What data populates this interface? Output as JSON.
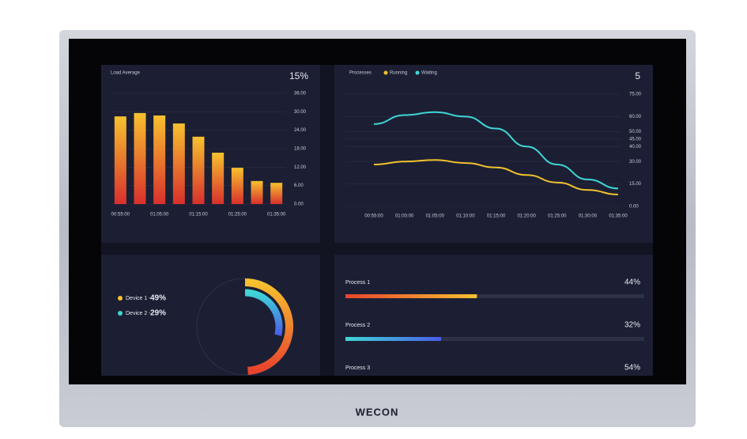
{
  "brand": "WECON",
  "chart_data": [
    {
      "type": "bar",
      "title": "Load Average",
      "stat": "15%",
      "categories": [
        "00:55:00",
        null,
        "01:05:00",
        null,
        "01:15:00",
        null,
        "01:25:00",
        null,
        "01:35:00"
      ],
      "values": [
        28.5,
        29.6,
        28.8,
        26.2,
        21.9,
        16.7,
        11.8,
        7.5,
        6.9
      ],
      "colors": [
        "#f7c12f",
        "#d8302c"
      ],
      "ylim": [
        0,
        36
      ],
      "yticks": [
        {
          "value": 0,
          "label": "0.00"
        },
        {
          "value": 6,
          "label": "6.00"
        },
        {
          "value": 12,
          "label": "12.00"
        },
        {
          "value": 18,
          "label": "18.00"
        },
        {
          "value": 24,
          "label": "24.00"
        },
        {
          "value": 30,
          "label": "30.00"
        },
        {
          "value": 36,
          "label": "36.00"
        }
      ],
      "grid": true
    },
    {
      "type": "line",
      "title": "Processes",
      "stat": "5",
      "categories": [
        "00:55:00",
        "01:00:00",
        "01:05:00",
        "01:10:00",
        "01:15:00",
        "01:20:00",
        "01:25:00",
        "01:30:00",
        "01:35:00"
      ],
      "series": [
        {
          "name": "Running",
          "color": "#f2c12e",
          "values": [
            28,
            30,
            31,
            29,
            26,
            21,
            16,
            11,
            8
          ]
        },
        {
          "name": "Waiting",
          "color": "#3fd6d6",
          "values": [
            55,
            61,
            63,
            60,
            52,
            40,
            28,
            18,
            12
          ]
        }
      ],
      "ylim": [
        0,
        75
      ],
      "yticks": [
        {
          "value": 0,
          "label": "0.00"
        },
        {
          "value": 15,
          "label": "15.00"
        },
        {
          "value": 30,
          "label": "30.00"
        },
        {
          "value": 40,
          "label": "40.00"
        },
        {
          "value": 45,
          "label": "45.00"
        },
        {
          "value": 50,
          "label": "50.00"
        },
        {
          "value": 60,
          "label": "60.00"
        },
        {
          "value": 75,
          "label": "75.00"
        }
      ],
      "grid": true
    },
    {
      "type": "radial",
      "categories": [
        "Device 1 -",
        "Device 2 -"
      ],
      "values": [
        49,
        29
      ],
      "value_labels": [
        "49%",
        "29%"
      ],
      "colors": [
        [
          "#f7c12f",
          "#e8432d"
        ],
        [
          "#3fd6d6",
          "#4a5de8"
        ]
      ]
    },
    {
      "type": "progress",
      "categories": [
        "Process 1",
        "Process 2",
        "Process 3"
      ],
      "values": [
        44,
        32,
        54
      ],
      "value_labels": [
        "44%",
        "32%",
        "54%"
      ],
      "colors": [
        [
          "#e8432d",
          "#f7c12f"
        ],
        [
          "#3fd6d6",
          "#4a5de8"
        ],
        [
          "#f7c12f",
          "#e8432d"
        ]
      ],
      "xlim": [
        0,
        100
      ]
    }
  ]
}
